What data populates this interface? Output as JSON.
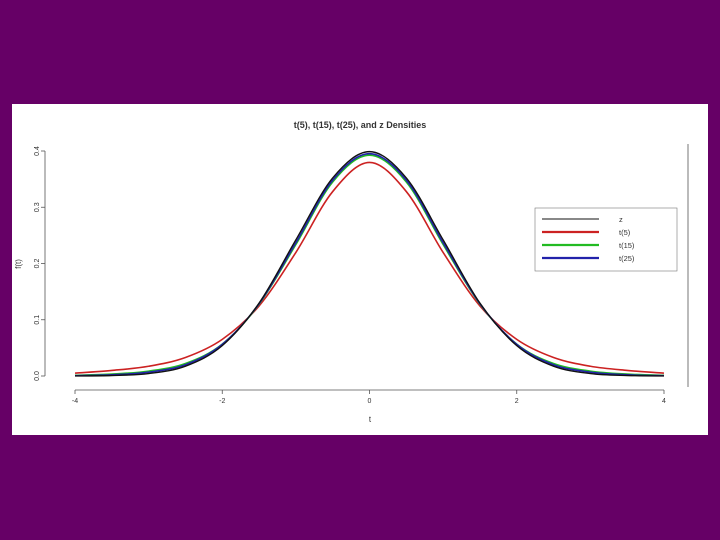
{
  "colors": {
    "background": "#660066",
    "panel": "#ffffff",
    "z": "#111111",
    "t5": "#cc2222",
    "t15": "#22bb22",
    "t25": "#2222aa"
  },
  "chart_data": {
    "type": "line",
    "title": "t(5), t(15), t(25), and z Densities",
    "xlabel": "t",
    "ylabel": "f(t)",
    "xlim": [
      -4,
      4
    ],
    "ylim": [
      0,
      0.4
    ],
    "xticks": [
      -4,
      -2,
      0,
      2,
      4
    ],
    "yticks": [
      "0.0",
      "0.1",
      "0.2",
      "0.3",
      "0.4"
    ],
    "grid": false,
    "legend_position": "right",
    "x": [
      -4,
      -3.5,
      -3,
      -2.5,
      -2,
      -1.5,
      -1,
      -0.5,
      0,
      0.5,
      1,
      1.5,
      2,
      2.5,
      3,
      3.5,
      4
    ],
    "series": [
      {
        "name": "z",
        "color": "#111111",
        "values": [
          0.0001,
          0.0009,
          0.0044,
          0.0175,
          0.054,
          0.1295,
          0.242,
          0.3521,
          0.3989,
          0.3521,
          0.242,
          0.1295,
          0.054,
          0.0175,
          0.0044,
          0.0009,
          0.0001
        ]
      },
      {
        "name": "t(5)",
        "color": "#cc2222",
        "values": [
          0.0051,
          0.0099,
          0.0173,
          0.0329,
          0.0651,
          0.1245,
          0.2197,
          0.3279,
          0.3796,
          0.3279,
          0.2197,
          0.1245,
          0.0651,
          0.0329,
          0.0173,
          0.0099,
          0.0051
        ]
      },
      {
        "name": "t(15)",
        "color": "#22bb22",
        "values": [
          0.0012,
          0.0034,
          0.0087,
          0.0222,
          0.0567,
          0.1277,
          0.2338,
          0.345,
          0.3925,
          0.345,
          0.2338,
          0.1277,
          0.0567,
          0.0222,
          0.0087,
          0.0034,
          0.0012
        ]
      },
      {
        "name": "t(25)",
        "color": "#2222aa",
        "values": [
          0.0005,
          0.0021,
          0.0068,
          0.0201,
          0.0562,
          0.1285,
          0.2369,
          0.3481,
          0.3952,
          0.3481,
          0.2369,
          0.1285,
          0.0562,
          0.0201,
          0.0068,
          0.0021,
          0.0005
        ]
      }
    ]
  }
}
